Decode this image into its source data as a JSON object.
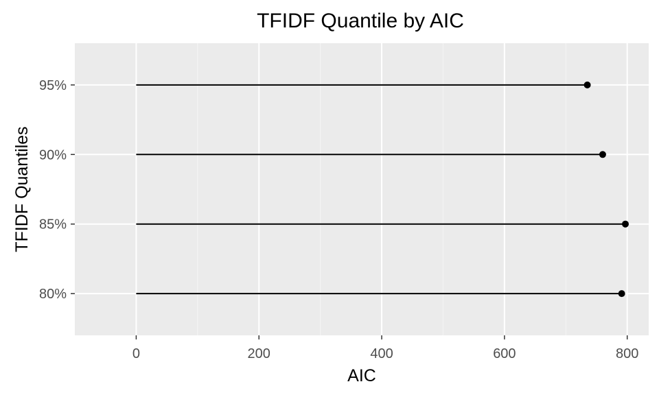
{
  "chart_data": {
    "type": "lollipop",
    "title": "TFIDF Quantile by AIC",
    "xlabel": "AIC",
    "ylabel": "TFIDF Quantiles",
    "categories": [
      "80%",
      "85%",
      "90%",
      "95%"
    ],
    "values": [
      791,
      797,
      760,
      735
    ],
    "x_baseline": 0,
    "xlim": [
      -100,
      835
    ],
    "x_ticks": [
      0,
      200,
      400,
      600,
      800
    ],
    "x_minor_ticks": [
      100,
      300,
      500,
      700
    ],
    "grid": true,
    "legend": "none",
    "colors": {
      "panel_background": "#ebebeb",
      "grid_major": "#ffffff",
      "grid_minor": "#f5f5f5",
      "segment": "#000000",
      "point": "#000000",
      "tick_label": "#4d4d4d"
    }
  }
}
